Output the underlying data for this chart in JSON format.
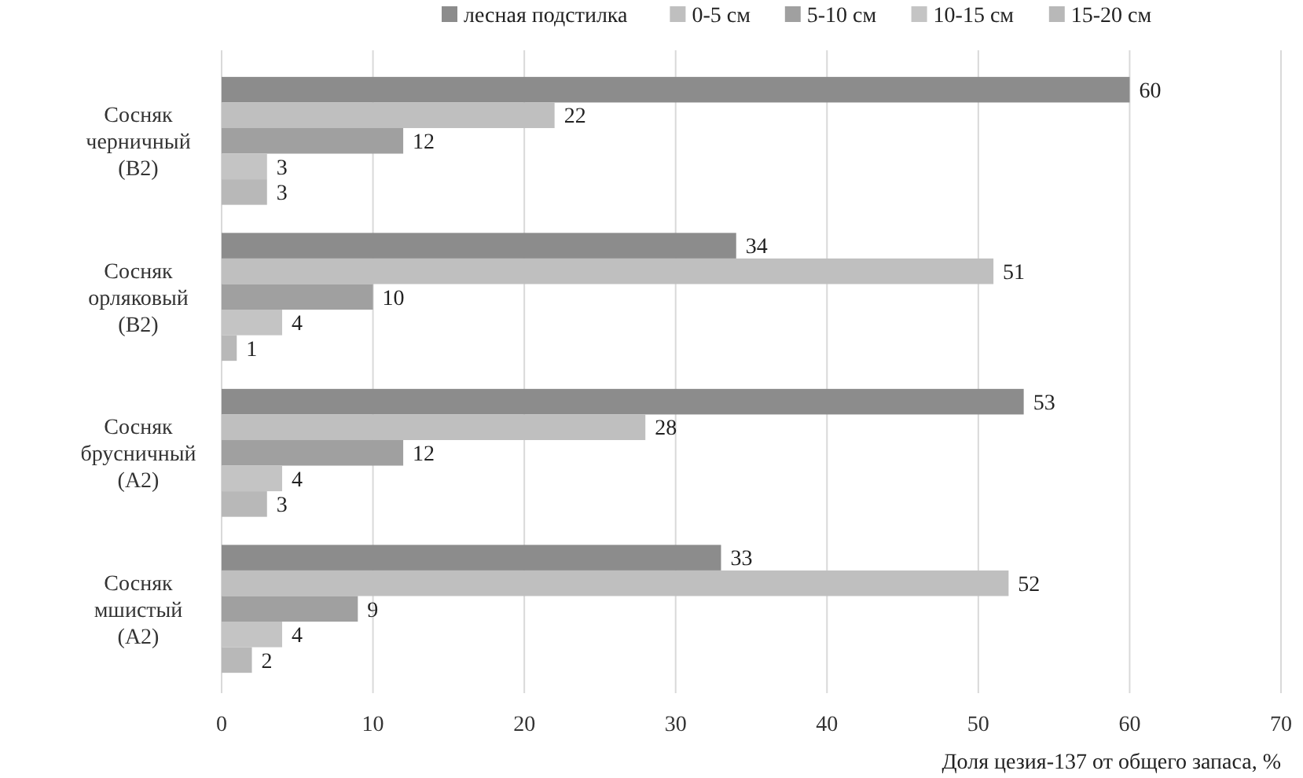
{
  "chart_data": {
    "type": "bar",
    "orientation": "horizontal",
    "xlabel": "Доля цезия-137 от общего запаса, %",
    "categories": [
      "Сосняк\nчерничный\n(B2)",
      "Сосняк\nорляковый\n(B2)",
      "Сосняк\nбрусничный\n(A2)",
      "Сосняк\nмшистый\n(A2)"
    ],
    "series": [
      {
        "name": "лесная подстилка",
        "color": "#8c8c8c",
        "values": [
          60,
          34,
          53,
          33
        ]
      },
      {
        "name": "0-5 см",
        "color": "#bfbfbf",
        "values": [
          22,
          51,
          28,
          52
        ]
      },
      {
        "name": "5-10 см",
        "color": "#a0a0a0",
        "values": [
          12,
          10,
          12,
          9
        ]
      },
      {
        "name": "10-15 см",
        "color": "#c4c4c4",
        "values": [
          3,
          4,
          4,
          4
        ]
      },
      {
        "name": "15-20 см",
        "color": "#b8b8b8",
        "values": [
          3,
          1,
          3,
          2
        ]
      }
    ],
    "xlim": [
      0,
      70
    ],
    "xticks": [
      0,
      10,
      20,
      30,
      40,
      50,
      60,
      70
    ],
    "grid": "x",
    "legend": "top",
    "data_labels": true
  }
}
